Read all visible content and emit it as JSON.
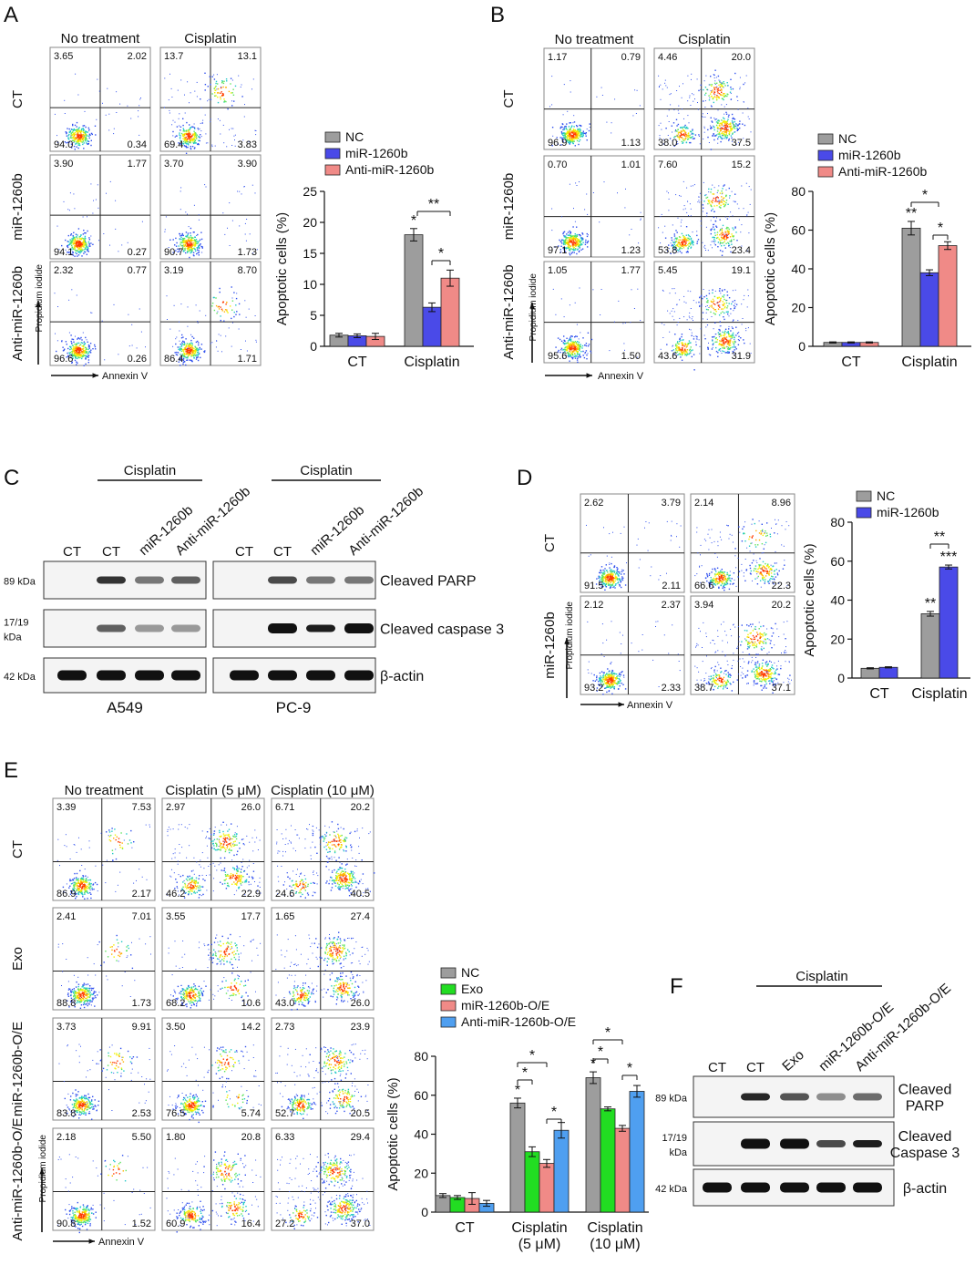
{
  "panels": {
    "A": {
      "letter": "A",
      "flow": {
        "cols": [
          "No treatment",
          "Cisplatin"
        ],
        "rows": [
          "CT",
          "miR-1260b",
          "Anti-miR-1260b"
        ],
        "xaxis": "Annexin V",
        "yaxis": "Propidium iodide",
        "quads": [
          [
            [
              "3.65",
              "2.02",
              "94.0",
              "0.34"
            ],
            [
              "13.7",
              "13.1",
              "69.4",
              "3.83"
            ]
          ],
          [
            [
              "3.90",
              "1.77",
              "94.1",
              "0.27"
            ],
            [
              "3.70",
              "3.90",
              "90.7",
              "1.73"
            ]
          ],
          [
            [
              "2.32",
              "0.77",
              "96.6",
              "0.26"
            ],
            [
              "3.19",
              "8.70",
              "86.4",
              "1.71"
            ]
          ]
        ]
      },
      "chart": {
        "ylabel": "Apoptotic cells (%)",
        "ylim": [
          0,
          25
        ],
        "yticks": [
          "0",
          "5",
          "10",
          "15",
          "20",
          "25"
        ],
        "categories": [
          "CT",
          "Cisplatin"
        ],
        "legend": [
          "NC",
          "miR-1260b",
          "Anti-miR-1260b"
        ],
        "values": [
          [
            1.8,
            1.7,
            1.6
          ],
          [
            18.0,
            6.3,
            11.0
          ]
        ],
        "errors": [
          [
            0.3,
            0.3,
            0.5
          ],
          [
            1.0,
            0.7,
            1.3
          ]
        ],
        "stars": [
          "*",
          "**",
          "*"
        ]
      }
    },
    "B": {
      "letter": "B",
      "flow": {
        "cols": [
          "No treatment",
          "Cisplatin"
        ],
        "rows": [
          "CT",
          "miR-1260b",
          "Anti-miR-1260b"
        ],
        "xaxis": "Annexin V",
        "yaxis": "Propidium iodide",
        "quads": [
          [
            [
              "1.17",
              "0.79",
              "96.9",
              "1.13"
            ],
            [
              "4.46",
              "20.0",
              "38.0",
              "37.5"
            ]
          ],
          [
            [
              "0.70",
              "1.01",
              "97.1",
              "1.23"
            ],
            [
              "7.60",
              "15.2",
              "53.8",
              "23.4"
            ]
          ],
          [
            [
              "1.05",
              "1.77",
              "95.6",
              "1.50"
            ],
            [
              "5.45",
              "19.1",
              "43.6",
              "31.9"
            ]
          ]
        ]
      },
      "chart": {
        "ylabel": "Apoptotic cells (%)",
        "ylim": [
          0,
          80
        ],
        "yticks": [
          "0",
          "20",
          "40",
          "60",
          "80"
        ],
        "categories": [
          "CT",
          "Cisplatin"
        ],
        "legend": [
          "NC",
          "miR-1260b",
          "Anti-miR-1260b"
        ],
        "values": [
          [
            2.0,
            2.0,
            2.0
          ],
          [
            61.0,
            38.0,
            52.0
          ]
        ],
        "errors": [
          [
            0.3,
            0.3,
            0.3
          ],
          [
            3.5,
            1.5,
            2.0
          ]
        ],
        "stars": [
          "**",
          "*",
          "*"
        ]
      }
    },
    "C": {
      "letter": "C",
      "treatment": "Cisplatin",
      "lanes": [
        "CT",
        "CT",
        "miR-1260b",
        "Anti-miR-1260b"
      ],
      "cells": [
        "A549",
        "PC-9"
      ],
      "bands": [
        "Cleaved PARP",
        "Cleaved caspase 3",
        "β-actin"
      ],
      "kda": [
        "89 kDa",
        "17/19\nkDa",
        "42 kDa"
      ]
    },
    "D": {
      "letter": "D",
      "flow": {
        "rows": [
          "CT",
          "miR-1260b"
        ],
        "xaxis": "Annexin V",
        "yaxis": "Propidium iodide",
        "quads": [
          [
            [
              "2.62",
              "3.79",
              "91.5",
              "2.11"
            ],
            [
              "2.14",
              "8.96",
              "66.6",
              "22.3"
            ]
          ],
          [
            [
              "2.12",
              "2.37",
              "93.2",
              "2.33"
            ],
            [
              "3.94",
              "20.2",
              "38.7",
              "37.1"
            ]
          ]
        ]
      },
      "chart": {
        "ylabel": "Apoptotic cells (%)",
        "ylim": [
          0,
          80
        ],
        "yticks": [
          "0",
          "20",
          "40",
          "60",
          "80"
        ],
        "categories": [
          "CT",
          "Cisplatin"
        ],
        "legend": [
          "NC",
          "miR-1260b"
        ],
        "values": [
          [
            5.0,
            5.5
          ],
          [
            33.0,
            57.0
          ]
        ],
        "errors": [
          [
            0.3,
            0.3
          ],
          [
            1.2,
            1.0
          ]
        ],
        "stars": [
          "**",
          "***",
          "**"
        ]
      }
    },
    "E": {
      "letter": "E",
      "flow": {
        "cols": [
          "No treatment",
          "Cisplatin (5 μM)",
          "Cisplatin (10 μM)"
        ],
        "rows": [
          "CT",
          "Exo",
          "miR-1260b-O/E",
          "Anti-miR-1260b-O/E"
        ],
        "xaxis": "Annexin V",
        "yaxis": "Propidium iodide",
        "quads": [
          [
            [
              "3.39",
              "7.53",
              "86.9",
              "2.17"
            ],
            [
              "2.97",
              "26.0",
              "46.2",
              "22.9"
            ],
            [
              "6.71",
              "20.2",
              "24.6",
              "40.5"
            ]
          ],
          [
            [
              "2.41",
              "7.01",
              "88.8",
              "1.73"
            ],
            [
              "3.55",
              "17.7",
              "68.2",
              "10.6"
            ],
            [
              "1.65",
              "27.4",
              "43.0",
              "26.0"
            ]
          ],
          [
            [
              "3.73",
              "9.91",
              "83.8",
              "2.53"
            ],
            [
              "3.50",
              "14.2",
              "76.5",
              "5.74"
            ],
            [
              "2.73",
              "23.9",
              "52.7",
              "20.5"
            ]
          ],
          [
            [
              "2.18",
              "5.50",
              "90.8",
              "1.52"
            ],
            [
              "1.80",
              "20.8",
              "60.9",
              "16.4"
            ],
            [
              "6.33",
              "29.4",
              "27.2",
              "37.0"
            ]
          ]
        ]
      },
      "chart": {
        "ylabel": "Apoptotic cells (%)",
        "ylim": [
          0,
          80
        ],
        "yticks": [
          "0",
          "20",
          "40",
          "60",
          "80"
        ],
        "categories": [
          "CT",
          "Cisplatin",
          "Cisplatin"
        ],
        "category_sub": [
          "",
          "(5 μM)",
          "(10 μM)"
        ],
        "legend": [
          "NC",
          "Exo",
          "miR-1260b-O/E",
          "Anti-miR-1260b-O/E"
        ],
        "values": [
          [
            8.5,
            7.5,
            7.0,
            4.5
          ],
          [
            56.0,
            31.0,
            25.0,
            42.0
          ],
          [
            69.0,
            53.0,
            43.0,
            62.0
          ]
        ],
        "errors": [
          [
            1.0,
            1.0,
            3.0,
            1.5
          ],
          [
            2.5,
            2.5,
            2.0,
            4.0
          ],
          [
            3.0,
            1.0,
            1.5,
            3.0
          ]
        ],
        "stars": [
          "*",
          "*",
          "*",
          "*",
          "*",
          "*",
          "*",
          "*"
        ]
      }
    },
    "F": {
      "letter": "F",
      "treatment": "Cisplatin",
      "lanes": [
        "CT",
        "CT",
        "Exo",
        "miR-1260b-O/E",
        "Anti-miR-1260b-O/E"
      ],
      "bands": [
        "Cleaved\nPARP",
        "Cleaved\nCaspase 3",
        "β-actin"
      ],
      "kda": [
        "89 kDa",
        "17/19\nkDa",
        "42 kDa"
      ]
    }
  },
  "colors": {
    "gray": "#9d9d9d",
    "blue": "#4a4ae8",
    "pink": "#f08a87",
    "green": "#22dd22",
    "lightblue": "#4f9ff0"
  }
}
